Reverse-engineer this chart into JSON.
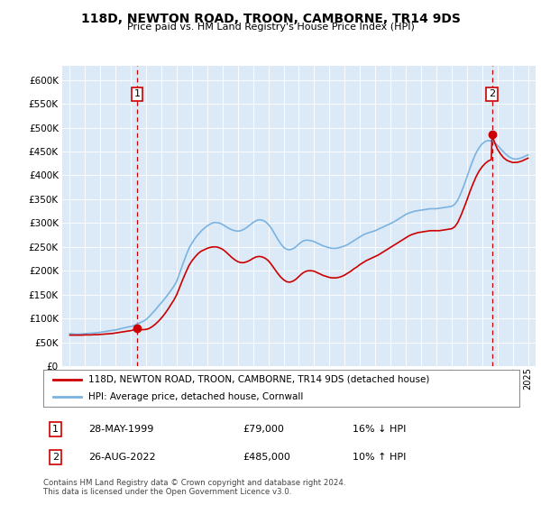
{
  "title": "118D, NEWTON ROAD, TROON, CAMBORNE, TR14 9DS",
  "subtitle": "Price paid vs. HM Land Registry's House Price Index (HPI)",
  "ytick_values": [
    0,
    50000,
    100000,
    150000,
    200000,
    250000,
    300000,
    350000,
    400000,
    450000,
    500000,
    550000,
    600000
  ],
  "ylim": [
    0,
    630000
  ],
  "background_color": "#dce9f7",
  "hpi_color": "#7ab3e0",
  "price_color": "#cc0000",
  "marker1_date_x": 1999.4,
  "marker1_price": 79000,
  "marker2_date_x": 2022.65,
  "marker2_price": 485000,
  "legend_label1": "118D, NEWTON ROAD, TROON, CAMBORNE, TR14 9DS (detached house)",
  "legend_label2": "HPI: Average price, detached house, Cornwall",
  "annotation1_date": "28-MAY-1999",
  "annotation1_price": "£79,000",
  "annotation1_hpi": "16% ↓ HPI",
  "annotation2_date": "26-AUG-2022",
  "annotation2_price": "£485,000",
  "annotation2_hpi": "10% ↑ HPI",
  "footnote": "Contains HM Land Registry data © Crown copyright and database right 2024.\nThis data is licensed under the Open Government Licence v3.0.",
  "xmin": 1994.5,
  "xmax": 2025.5,
  "hpi_data": [
    [
      1995.0,
      68000
    ],
    [
      1995.2,
      67500
    ],
    [
      1995.4,
      67000
    ],
    [
      1995.6,
      67000
    ],
    [
      1995.8,
      67500
    ],
    [
      1996.0,
      68000
    ],
    [
      1996.2,
      68500
    ],
    [
      1996.4,
      69000
    ],
    [
      1996.6,
      69500
    ],
    [
      1996.8,
      70000
    ],
    [
      1997.0,
      71000
    ],
    [
      1997.2,
      72000
    ],
    [
      1997.4,
      73000
    ],
    [
      1997.6,
      74000
    ],
    [
      1997.8,
      75000
    ],
    [
      1998.0,
      76000
    ],
    [
      1998.2,
      77500
    ],
    [
      1998.4,
      79000
    ],
    [
      1998.6,
      80500
    ],
    [
      1998.8,
      82000
    ],
    [
      1999.0,
      83000
    ],
    [
      1999.2,
      85000
    ],
    [
      1999.4,
      88000
    ],
    [
      1999.6,
      91000
    ],
    [
      1999.8,
      94000
    ],
    [
      2000.0,
      98000
    ],
    [
      2000.2,
      104000
    ],
    [
      2000.4,
      111000
    ],
    [
      2000.6,
      118000
    ],
    [
      2000.8,
      126000
    ],
    [
      2001.0,
      133000
    ],
    [
      2001.2,
      141000
    ],
    [
      2001.4,
      149000
    ],
    [
      2001.6,
      158000
    ],
    [
      2001.8,
      167000
    ],
    [
      2002.0,
      178000
    ],
    [
      2002.2,
      196000
    ],
    [
      2002.4,
      214000
    ],
    [
      2002.6,
      231000
    ],
    [
      2002.8,
      247000
    ],
    [
      2003.0,
      258000
    ],
    [
      2003.2,
      268000
    ],
    [
      2003.4,
      276000
    ],
    [
      2003.6,
      283000
    ],
    [
      2003.8,
      289000
    ],
    [
      2004.0,
      294000
    ],
    [
      2004.2,
      298000
    ],
    [
      2004.4,
      301000
    ],
    [
      2004.6,
      301000
    ],
    [
      2004.8,
      300000
    ],
    [
      2005.0,
      297000
    ],
    [
      2005.2,
      293000
    ],
    [
      2005.4,
      289000
    ],
    [
      2005.6,
      286000
    ],
    [
      2005.8,
      284000
    ],
    [
      2006.0,
      283000
    ],
    [
      2006.2,
      284000
    ],
    [
      2006.4,
      287000
    ],
    [
      2006.6,
      291000
    ],
    [
      2006.8,
      296000
    ],
    [
      2007.0,
      301000
    ],
    [
      2007.2,
      305000
    ],
    [
      2007.4,
      307000
    ],
    [
      2007.6,
      306000
    ],
    [
      2007.8,
      303000
    ],
    [
      2008.0,
      297000
    ],
    [
      2008.2,
      289000
    ],
    [
      2008.4,
      278000
    ],
    [
      2008.6,
      267000
    ],
    [
      2008.8,
      257000
    ],
    [
      2009.0,
      249000
    ],
    [
      2009.2,
      245000
    ],
    [
      2009.4,
      244000
    ],
    [
      2009.6,
      246000
    ],
    [
      2009.8,
      250000
    ],
    [
      2010.0,
      256000
    ],
    [
      2010.2,
      261000
    ],
    [
      2010.4,
      264000
    ],
    [
      2010.6,
      264000
    ],
    [
      2010.8,
      263000
    ],
    [
      2011.0,
      261000
    ],
    [
      2011.2,
      258000
    ],
    [
      2011.4,
      255000
    ],
    [
      2011.6,
      252000
    ],
    [
      2011.8,
      250000
    ],
    [
      2012.0,
      248000
    ],
    [
      2012.2,
      247000
    ],
    [
      2012.4,
      247000
    ],
    [
      2012.6,
      248000
    ],
    [
      2012.8,
      250000
    ],
    [
      2013.0,
      252000
    ],
    [
      2013.2,
      255000
    ],
    [
      2013.4,
      259000
    ],
    [
      2013.6,
      263000
    ],
    [
      2013.8,
      267000
    ],
    [
      2014.0,
      271000
    ],
    [
      2014.2,
      275000
    ],
    [
      2014.4,
      278000
    ],
    [
      2014.6,
      280000
    ],
    [
      2014.8,
      282000
    ],
    [
      2015.0,
      284000
    ],
    [
      2015.2,
      287000
    ],
    [
      2015.4,
      290000
    ],
    [
      2015.6,
      293000
    ],
    [
      2015.8,
      296000
    ],
    [
      2016.0,
      299000
    ],
    [
      2016.2,
      302000
    ],
    [
      2016.4,
      306000
    ],
    [
      2016.6,
      310000
    ],
    [
      2016.8,
      314000
    ],
    [
      2017.0,
      318000
    ],
    [
      2017.2,
      321000
    ],
    [
      2017.4,
      323000
    ],
    [
      2017.6,
      325000
    ],
    [
      2017.8,
      326000
    ],
    [
      2018.0,
      327000
    ],
    [
      2018.2,
      328000
    ],
    [
      2018.4,
      329000
    ],
    [
      2018.6,
      330000
    ],
    [
      2018.8,
      330000
    ],
    [
      2019.0,
      330000
    ],
    [
      2019.2,
      331000
    ],
    [
      2019.4,
      332000
    ],
    [
      2019.6,
      333000
    ],
    [
      2019.8,
      334000
    ],
    [
      2020.0,
      335000
    ],
    [
      2020.2,
      339000
    ],
    [
      2020.4,
      348000
    ],
    [
      2020.6,
      362000
    ],
    [
      2020.8,
      378000
    ],
    [
      2021.0,
      396000
    ],
    [
      2021.2,
      415000
    ],
    [
      2021.4,
      432000
    ],
    [
      2021.6,
      447000
    ],
    [
      2021.8,
      458000
    ],
    [
      2022.0,
      466000
    ],
    [
      2022.2,
      471000
    ],
    [
      2022.4,
      473000
    ],
    [
      2022.6,
      472000
    ],
    [
      2022.8,
      469000
    ],
    [
      2023.0,
      463000
    ],
    [
      2023.2,
      456000
    ],
    [
      2023.4,
      449000
    ],
    [
      2023.6,
      443000
    ],
    [
      2023.8,
      438000
    ],
    [
      2024.0,
      435000
    ],
    [
      2024.2,
      434000
    ],
    [
      2024.4,
      435000
    ],
    [
      2024.6,
      437000
    ],
    [
      2024.8,
      440000
    ],
    [
      2025.0,
      443000
    ]
  ],
  "price_data": [
    [
      1995.0,
      65000
    ],
    [
      1995.2,
      65000
    ],
    [
      1995.4,
      65000
    ],
    [
      1995.6,
      65000
    ],
    [
      1995.8,
      65000
    ],
    [
      1996.0,
      65500
    ],
    [
      1996.2,
      65500
    ],
    [
      1996.4,
      65500
    ],
    [
      1996.6,
      66000
    ],
    [
      1996.8,
      66000
    ],
    [
      1997.0,
      66500
    ],
    [
      1997.2,
      67000
    ],
    [
      1997.4,
      67500
    ],
    [
      1997.6,
      68000
    ],
    [
      1997.8,
      68500
    ],
    [
      1998.0,
      69500
    ],
    [
      1998.2,
      70500
    ],
    [
      1998.4,
      71500
    ],
    [
      1998.6,
      72500
    ],
    [
      1998.8,
      73500
    ],
    [
      1999.0,
      74500
    ],
    [
      1999.2,
      76000
    ],
    [
      1999.4,
      79000
    ],
    [
      1999.6,
      76500
    ],
    [
      1999.8,
      76500
    ],
    [
      2000.0,
      77000
    ],
    [
      2000.2,
      79000
    ],
    [
      2000.4,
      83000
    ],
    [
      2000.6,
      88000
    ],
    [
      2000.8,
      94000
    ],
    [
      2001.0,
      101000
    ],
    [
      2001.2,
      109000
    ],
    [
      2001.4,
      118000
    ],
    [
      2001.6,
      128000
    ],
    [
      2001.8,
      138000
    ],
    [
      2002.0,
      150000
    ],
    [
      2002.2,
      166000
    ],
    [
      2002.4,
      182000
    ],
    [
      2002.6,
      197000
    ],
    [
      2002.8,
      211000
    ],
    [
      2003.0,
      221000
    ],
    [
      2003.2,
      229000
    ],
    [
      2003.4,
      236000
    ],
    [
      2003.6,
      241000
    ],
    [
      2003.8,
      244000
    ],
    [
      2004.0,
      247000
    ],
    [
      2004.2,
      249000
    ],
    [
      2004.4,
      250000
    ],
    [
      2004.6,
      250000
    ],
    [
      2004.8,
      248000
    ],
    [
      2005.0,
      245000
    ],
    [
      2005.2,
      240000
    ],
    [
      2005.4,
      234000
    ],
    [
      2005.6,
      228000
    ],
    [
      2005.8,
      223000
    ],
    [
      2006.0,
      219000
    ],
    [
      2006.2,
      217000
    ],
    [
      2006.4,
      217000
    ],
    [
      2006.6,
      219000
    ],
    [
      2006.8,
      222000
    ],
    [
      2007.0,
      226000
    ],
    [
      2007.2,
      229000
    ],
    [
      2007.4,
      230000
    ],
    [
      2007.6,
      229000
    ],
    [
      2007.8,
      226000
    ],
    [
      2008.0,
      221000
    ],
    [
      2008.2,
      213000
    ],
    [
      2008.4,
      204000
    ],
    [
      2008.6,
      195000
    ],
    [
      2008.8,
      187000
    ],
    [
      2009.0,
      181000
    ],
    [
      2009.2,
      177000
    ],
    [
      2009.4,
      176000
    ],
    [
      2009.6,
      178000
    ],
    [
      2009.8,
      182000
    ],
    [
      2010.0,
      188000
    ],
    [
      2010.2,
      194000
    ],
    [
      2010.4,
      198000
    ],
    [
      2010.6,
      200000
    ],
    [
      2010.8,
      200000
    ],
    [
      2011.0,
      199000
    ],
    [
      2011.2,
      196000
    ],
    [
      2011.4,
      193000
    ],
    [
      2011.6,
      190000
    ],
    [
      2011.8,
      188000
    ],
    [
      2012.0,
      186000
    ],
    [
      2012.2,
      185000
    ],
    [
      2012.4,
      185000
    ],
    [
      2012.6,
      186000
    ],
    [
      2012.8,
      188000
    ],
    [
      2013.0,
      191000
    ],
    [
      2013.2,
      195000
    ],
    [
      2013.4,
      199000
    ],
    [
      2013.6,
      204000
    ],
    [
      2013.8,
      208000
    ],
    [
      2014.0,
      213000
    ],
    [
      2014.2,
      217000
    ],
    [
      2014.4,
      221000
    ],
    [
      2014.6,
      224000
    ],
    [
      2014.8,
      227000
    ],
    [
      2015.0,
      230000
    ],
    [
      2015.2,
      233000
    ],
    [
      2015.4,
      237000
    ],
    [
      2015.6,
      241000
    ],
    [
      2015.8,
      245000
    ],
    [
      2016.0,
      249000
    ],
    [
      2016.2,
      253000
    ],
    [
      2016.4,
      257000
    ],
    [
      2016.6,
      261000
    ],
    [
      2016.8,
      265000
    ],
    [
      2017.0,
      269000
    ],
    [
      2017.2,
      273000
    ],
    [
      2017.4,
      276000
    ],
    [
      2017.6,
      278000
    ],
    [
      2017.8,
      280000
    ],
    [
      2018.0,
      281000
    ],
    [
      2018.2,
      282000
    ],
    [
      2018.4,
      283000
    ],
    [
      2018.6,
      284000
    ],
    [
      2018.8,
      284000
    ],
    [
      2019.0,
      284000
    ],
    [
      2019.2,
      284000
    ],
    [
      2019.4,
      285000
    ],
    [
      2019.6,
      286000
    ],
    [
      2019.8,
      287000
    ],
    [
      2020.0,
      288000
    ],
    [
      2020.2,
      292000
    ],
    [
      2020.4,
      301000
    ],
    [
      2020.6,
      315000
    ],
    [
      2020.8,
      331000
    ],
    [
      2021.0,
      348000
    ],
    [
      2021.2,
      366000
    ],
    [
      2021.4,
      382000
    ],
    [
      2021.6,
      397000
    ],
    [
      2021.8,
      409000
    ],
    [
      2022.0,
      418000
    ],
    [
      2022.2,
      425000
    ],
    [
      2022.4,
      430000
    ],
    [
      2022.6,
      433000
    ],
    [
      2022.65,
      485000
    ],
    [
      2022.7,
      480000
    ],
    [
      2022.8,
      470000
    ],
    [
      2023.0,
      455000
    ],
    [
      2023.2,
      445000
    ],
    [
      2023.4,
      437000
    ],
    [
      2023.6,
      432000
    ],
    [
      2023.8,
      429000
    ],
    [
      2024.0,
      427000
    ],
    [
      2024.2,
      427000
    ],
    [
      2024.4,
      428000
    ],
    [
      2024.6,
      430000
    ],
    [
      2024.8,
      433000
    ],
    [
      2025.0,
      436000
    ]
  ]
}
